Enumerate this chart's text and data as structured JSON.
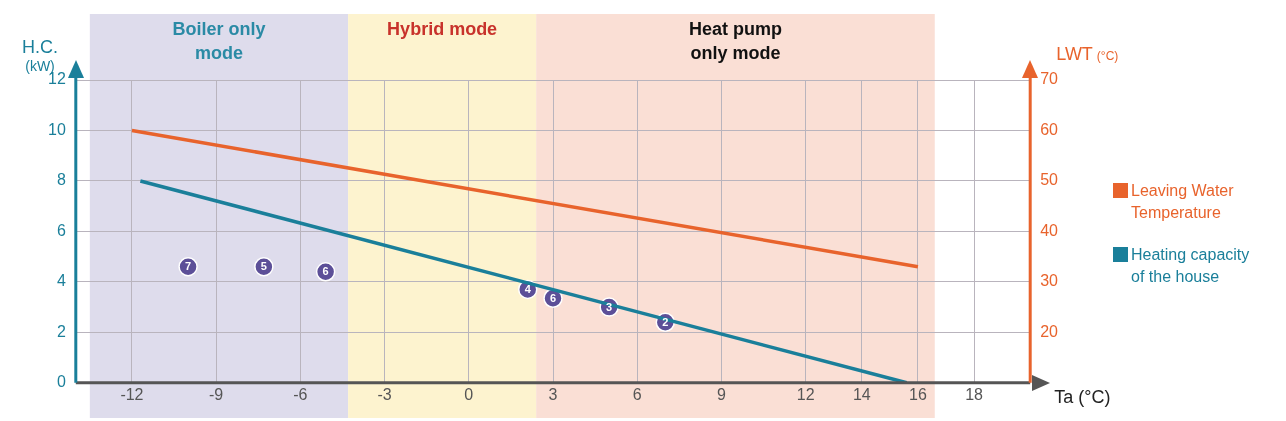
{
  "chart_data": {
    "type": "line",
    "xlabel": "Ta (°C)",
    "ylabel": "H.C. (kW)",
    "y2label": "LWT (°C)",
    "xlim": [
      -14,
      20
    ],
    "xticks": [
      -12,
      -9,
      -6,
      -3,
      0,
      3,
      6,
      9,
      12,
      14,
      16,
      18
    ],
    "ylim": [
      0,
      12
    ],
    "yticks": [
      0,
      2,
      4,
      6,
      8,
      10,
      12
    ],
    "y2lim": [
      10,
      70
    ],
    "y2ticks": [
      20,
      30,
      40,
      50,
      60,
      70
    ],
    "grid": true,
    "legend": "right",
    "annotations": [
      {
        "text": "7",
        "x": -10,
        "y": 4.6
      },
      {
        "text": "5",
        "x": -7.3,
        "y": 4.6
      },
      {
        "text": "6",
        "x": -5.1,
        "y": 4.4
      },
      {
        "text": "4",
        "x": 2.1,
        "y": 3.7
      },
      {
        "text": "6",
        "x": 3,
        "y": 3.35
      },
      {
        "text": "3",
        "x": 5,
        "y": 3.0
      },
      {
        "text": "2",
        "x": 7,
        "y": 2.4
      }
    ],
    "bands": [
      {
        "axis": "x",
        "from": -13.5,
        "to": -4.3,
        "label": "Boiler only mode",
        "color": "#dedcec"
      },
      {
        "axis": "x",
        "from": -4.3,
        "to": 2.4,
        "label": "Hybrid mode",
        "color": "#fdf3cf"
      },
      {
        "axis": "x",
        "from": 2.4,
        "to": 16.6,
        "label": "Heat pump only mode",
        "color": "#fadfd5"
      }
    ],
    "series": [
      {
        "name": "Leaving Water Temperature",
        "type": "line",
        "axis": "y2",
        "color": "#e8632c",
        "x": [
          -12,
          16
        ],
        "values": [
          60,
          33
        ]
      },
      {
        "name": "Heating capacity of the house",
        "type": "line",
        "color": "#1a7f9a",
        "x": [
          -11.7,
          15.6
        ],
        "values": [
          8,
          0
        ]
      },
      {
        "type": "scatter",
        "marker": "circle",
        "color": "#5c4f98",
        "x": [
          -10,
          -7.3,
          -5.1,
          2.1,
          3,
          5,
          7
        ],
        "values": [
          4.6,
          4.6,
          4.4,
          3.7,
          3.35,
          3.0,
          2.4
        ]
      }
    ]
  }
}
